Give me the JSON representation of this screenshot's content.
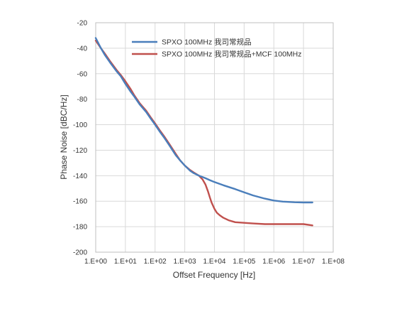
{
  "chart_data": {
    "type": "line",
    "xlabel": "Offset Frequency [Hz]",
    "ylabel": "Phase Noise [dBC/Hz]",
    "x_scale": "log",
    "xlim": [
      1,
      100000000
    ],
    "ylim": [
      -200,
      -20
    ],
    "x_ticks": [
      1,
      10,
      100,
      1000,
      10000,
      100000,
      1000000,
      10000000,
      100000000
    ],
    "x_tick_labels": [
      "1.E+00",
      "1.E+01",
      "1.E+02",
      "1.E+03",
      "1.E+04",
      "1.E+05",
      "1.E+06",
      "1.E+07",
      "1.E+08"
    ],
    "y_ticks": [
      -200,
      -180,
      -160,
      -140,
      -120,
      -100,
      -80,
      -60,
      -40,
      -20
    ],
    "y_tick_labels": [
      "-200",
      "-180",
      "-160",
      "-140",
      "-120",
      "-100",
      "-80",
      "-60",
      "-40",
      "-20"
    ],
    "grid": true,
    "legend_position": "top-center",
    "series": [
      {
        "name": "SPXO 100MHz 我司常规品",
        "color": "#4a7ebb",
        "x": [
          1,
          1.5,
          2,
          3,
          5,
          7,
          10,
          15,
          20,
          30,
          50,
          70,
          100,
          150,
          200,
          300,
          500,
          700,
          1000,
          1500,
          2000,
          3000,
          5000,
          7000,
          10000,
          20000,
          50000,
          100000,
          200000,
          500000,
          1000000,
          2000000,
          5000000,
          10000000,
          20000000
        ],
        "y": [
          -32,
          -40,
          -45,
          -51,
          -58,
          -62,
          -68,
          -74,
          -78,
          -84,
          -90,
          -95,
          -100,
          -106,
          -110,
          -116,
          -124,
          -128,
          -132,
          -136,
          -138,
          -140,
          -142,
          -143.5,
          -145,
          -147.5,
          -150.5,
          -153,
          -155.5,
          -158,
          -159.5,
          -160.3,
          -160.8,
          -161,
          -161
        ]
      },
      {
        "name": "SPXO 100MHz 我司常规品+MCF 100MHz",
        "color": "#c0504d",
        "x": [
          1,
          1.5,
          2,
          3,
          5,
          7,
          10,
          15,
          20,
          30,
          50,
          70,
          100,
          150,
          200,
          300,
          500,
          700,
          1000,
          1500,
          2000,
          3000,
          4000,
          5000,
          6000,
          7000,
          8000,
          10000,
          12000,
          15000,
          20000,
          30000,
          50000,
          100000,
          200000,
          500000,
          1000000,
          2000000,
          5000000,
          10000000,
          20000000
        ],
        "y": [
          -34,
          -40,
          -44,
          -50,
          -57,
          -61,
          -66,
          -72,
          -77,
          -83,
          -89,
          -94,
          -99,
          -105,
          -109,
          -115,
          -123,
          -128,
          -132,
          -135.5,
          -137.5,
          -140,
          -143,
          -147,
          -152,
          -157,
          -161,
          -166,
          -169,
          -171,
          -173,
          -175,
          -176.5,
          -177,
          -177.5,
          -178,
          -178,
          -178,
          -178,
          -178,
          -179
        ]
      }
    ]
  }
}
